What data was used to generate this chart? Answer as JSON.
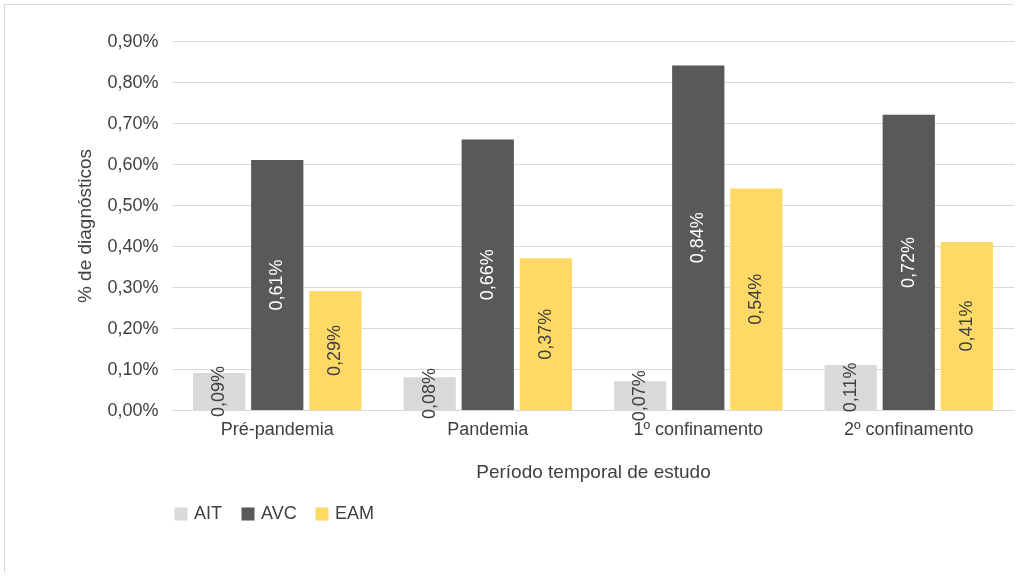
{
  "chart_data": {
    "type": "bar",
    "xlabel": "Período temporal de estudo",
    "ylabel": "% de diagnósticos",
    "categories": [
      "Pré-pandemia",
      "Pandemia",
      "1º confinamento",
      "2º confinamento"
    ],
    "series": [
      {
        "name": "AIT",
        "color": "#d9d9d9",
        "values": [
          0.09,
          0.08,
          0.07,
          0.11
        ],
        "value_labels": [
          "0,09%",
          "0,08%",
          "0,07%",
          "0,11%"
        ]
      },
      {
        "name": "AVC",
        "color": "#595959",
        "values": [
          0.61,
          0.66,
          0.84,
          0.72
        ],
        "value_labels": [
          "0,61%",
          "0,66%",
          "0,84%",
          "0,72%"
        ]
      },
      {
        "name": "EAM",
        "color": "#ffd966",
        "values": [
          0.29,
          0.37,
          0.54,
          0.41
        ],
        "value_labels": [
          "0,29%",
          "0,37%",
          "0,54%",
          "0,41%"
        ]
      }
    ],
    "ylim": [
      0,
      0.9
    ],
    "yticks": [
      {
        "value": 0,
        "label": "0,00%"
      },
      {
        "value": 0.1,
        "label": "0,10%"
      },
      {
        "value": 0.2,
        "label": "0,20%"
      },
      {
        "value": 0.3,
        "label": "0,30%"
      },
      {
        "value": 0.4,
        "label": "0,40%"
      },
      {
        "value": 0.5,
        "label": "0,50%"
      },
      {
        "value": 0.6,
        "label": "0,60%"
      },
      {
        "value": 0.7,
        "label": "0,70%"
      },
      {
        "value": 0.8,
        "label": "0,80%"
      },
      {
        "value": 0.9,
        "label": "0,90%"
      }
    ],
    "grid": "y",
    "legend": "bottom"
  }
}
